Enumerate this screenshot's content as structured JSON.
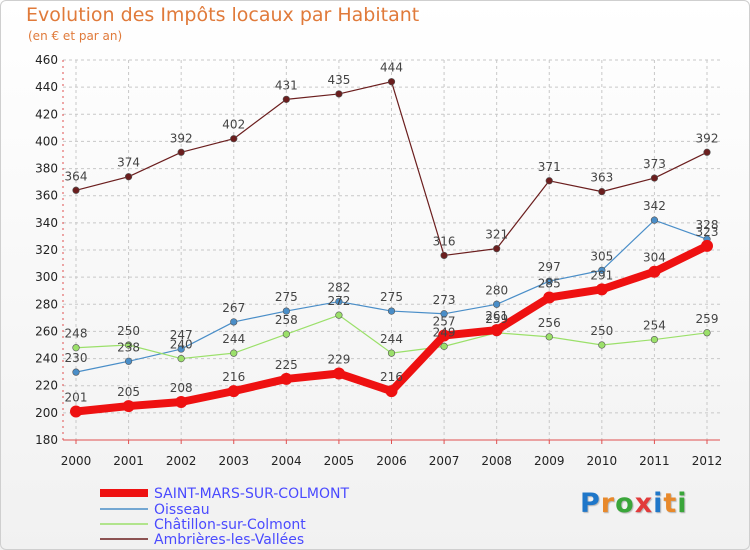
{
  "title": "Evolution des Impôts locaux par Habitant",
  "subtitle": "(en € et par an)",
  "logo": {
    "letters": [
      "P",
      "r",
      "o",
      "x",
      "i",
      "t",
      "i"
    ],
    "colors": [
      "#1f77c9",
      "#e8892b",
      "#3aa63a",
      "#e23b3b",
      "#1f77c9",
      "#e8892b",
      "#3aa63a"
    ]
  },
  "chart_data": {
    "type": "line",
    "title": "Evolution des Impôts locaux par Habitant",
    "ylabel": "(en € et par an)",
    "xlabel": "",
    "ylim": [
      180,
      460
    ],
    "y_ticks": [
      "180",
      "200",
      "220",
      "240",
      "260",
      "280",
      "300",
      "320",
      "340",
      "360",
      "380",
      "400",
      "420",
      "440",
      "460"
    ],
    "categories": [
      "2000",
      "2001",
      "2002",
      "2003",
      "2004",
      "2005",
      "2006",
      "2007",
      "2008",
      "2009",
      "2010",
      "2011",
      "2012"
    ],
    "grid": true,
    "series": [
      {
        "name": "Ambrières-les-Vallées",
        "color": "#6b1e1e",
        "values": [
          364,
          374,
          392,
          402,
          431,
          435,
          444,
          316,
          321,
          371,
          363,
          373,
          392
        ],
        "labels": [
          "364",
          "374",
          "392",
          "402",
          "431",
          "435",
          "444",
          "316",
          "321",
          "371",
          "363",
          "373",
          "392"
        ]
      },
      {
        "name": "Oisseau",
        "color": "#4a8ec8",
        "values": [
          230,
          238,
          247,
          267,
          275,
          282,
          275,
          273,
          280,
          297,
          305,
          342,
          328
        ],
        "labels": [
          "230",
          "238",
          "247",
          "267",
          "275",
          "282",
          "275",
          "273",
          "280",
          "297",
          "305",
          "342",
          "328"
        ]
      },
      {
        "name": "Châtillon-sur-Colmont",
        "color": "#9be06a",
        "values": [
          248,
          250,
          240,
          244,
          258,
          272,
          244,
          249,
          259,
          256,
          250,
          254,
          259
        ],
        "labels": [
          "248",
          "250",
          "240",
          "244",
          "258",
          "272",
          "244",
          "249",
          "259",
          "256",
          "250",
          "254",
          "259"
        ]
      },
      {
        "name": "SAINT-MARS-SUR-COLMONT",
        "color": "#ee1111",
        "values": [
          201,
          205,
          208,
          216,
          225,
          229,
          216,
          257,
          261,
          285,
          291,
          304,
          323
        ],
        "labels": [
          "201",
          "205",
          "208",
          "216",
          "225",
          "229",
          "216",
          "257",
          "261",
          "285",
          "291",
          "304",
          "323"
        ]
      }
    ],
    "legend": [
      "SAINT-MARS-SUR-COLMONT",
      "Oisseau",
      "Châtillon-sur-Colmont",
      "Ambrières-les-Vallées"
    ],
    "legend_colors": [
      "#ee1111",
      "#4a8ec8",
      "#9be06a",
      "#6b1e1e"
    ]
  }
}
